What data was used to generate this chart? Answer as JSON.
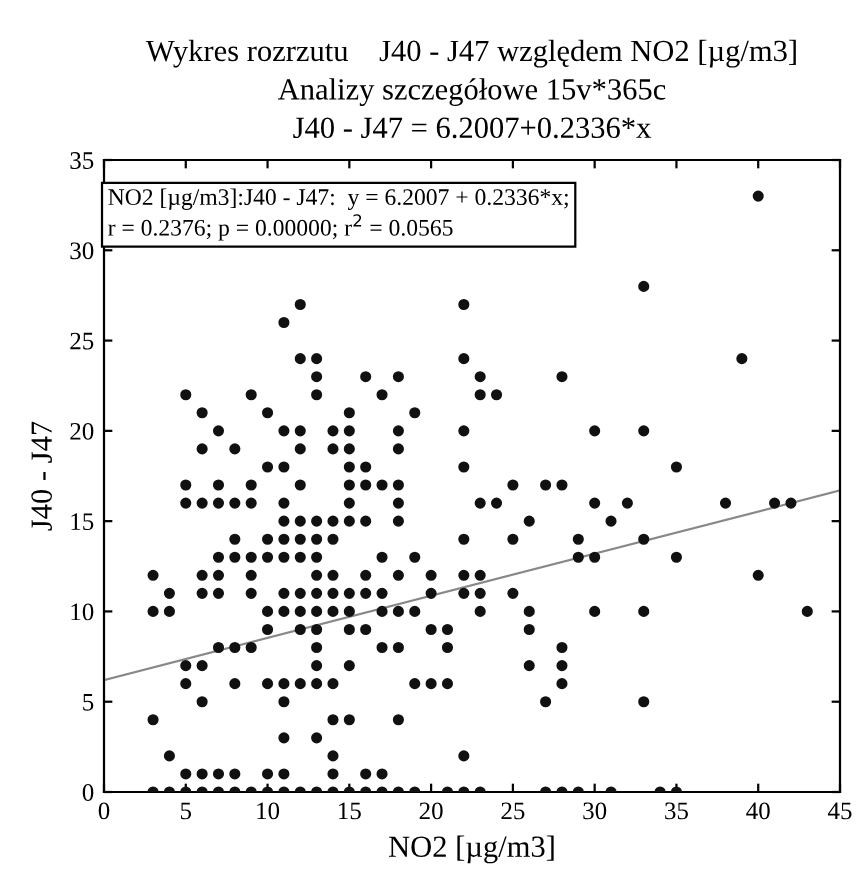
{
  "chart_data": {
    "type": "scatter",
    "title": "Wykres rozrzutu    J40 - J47 względem NO2 [µg/m3]\nAnalizy szczegółowe 15v*365c\nJ40 - J47 = 6.2007+0.2336*x",
    "xlabel": "NO2 [µg/m3]",
    "ylabel": "J40 - J47",
    "annotations": [
      "NO2 [µg/m3]:J40 - J47:  y = 6.2007 + 0.2336*x;\nr = 0.2376; p = 0.00000; r$^{2}$ = 0.0565"
    ],
    "xlim": [
      0,
      45
    ],
    "ylim": [
      0,
      35
    ],
    "xticks": [
      0,
      5,
      10,
      15,
      20,
      25,
      30,
      35,
      40,
      45
    ],
    "yticks": [
      0,
      5,
      10,
      15,
      20,
      25,
      30,
      35
    ],
    "grid": false,
    "legend": false,
    "marker": "circle",
    "series": [
      {
        "color": "#111111",
        "x": [
          3,
          4,
          5,
          6,
          7,
          8,
          9,
          10,
          11,
          12,
          13,
          14,
          15,
          16,
          17,
          18,
          19,
          21,
          22,
          23,
          27,
          28,
          29,
          31,
          34,
          35,
          5,
          6,
          7,
          8,
          10,
          11,
          14,
          16,
          17,
          4,
          14,
          22,
          11,
          13,
          3,
          14,
          15,
          18,
          6,
          11,
          27,
          33,
          5,
          8,
          10,
          11,
          12,
          13,
          14,
          19,
          20,
          21,
          28,
          5,
          6,
          13,
          15,
          26,
          28,
          7,
          8,
          9,
          13,
          17,
          18,
          21,
          28,
          10,
          12,
          13,
          15,
          16,
          20,
          21,
          26,
          3,
          4,
          10,
          11,
          12,
          13,
          14,
          15,
          17,
          18,
          19,
          23,
          26,
          30,
          33,
          43,
          4,
          6,
          7,
          9,
          11,
          12,
          13,
          14,
          15,
          16,
          17,
          20,
          22,
          23,
          25,
          3,
          6,
          7,
          9,
          13,
          14,
          16,
          18,
          20,
          22,
          23,
          40,
          7,
          8,
          9,
          10,
          11,
          12,
          13,
          17,
          19,
          29,
          30,
          35,
          8,
          10,
          11,
          12,
          13,
          14,
          22,
          25,
          29,
          33,
          11,
          12,
          13,
          14,
          15,
          16,
          18,
          26,
          31,
          5,
          6,
          7,
          8,
          9,
          11,
          15,
          18,
          23,
          24,
          30,
          32,
          38,
          41,
          42,
          5,
          7,
          9,
          12,
          15,
          16,
          17,
          18,
          25,
          27,
          28,
          10,
          11,
          15,
          16,
          22,
          35,
          6,
          8,
          12,
          14,
          15,
          18,
          7,
          11,
          12,
          14,
          15,
          18,
          22,
          30,
          33,
          6,
          10,
          15,
          19,
          5,
          9,
          13,
          17,
          23,
          24,
          13,
          16,
          18,
          23,
          28,
          12,
          13,
          22,
          39,
          11,
          12,
          22,
          33,
          40
        ],
        "values": [
          0,
          0,
          0,
          0,
          0,
          0,
          0,
          0,
          0,
          0,
          0,
          0,
          0,
          0,
          0,
          0,
          0,
          0,
          0,
          0,
          0,
          0,
          0,
          0,
          0,
          0,
          1,
          1,
          1,
          1,
          1,
          1,
          1,
          1,
          1,
          2,
          2,
          2,
          3,
          3,
          4,
          4,
          4,
          4,
          5,
          5,
          5,
          5,
          6,
          6,
          6,
          6,
          6,
          6,
          6,
          6,
          6,
          6,
          6,
          7,
          7,
          7,
          7,
          7,
          7,
          8,
          8,
          8,
          8,
          8,
          8,
          8,
          8,
          9,
          9,
          9,
          9,
          9,
          9,
          9,
          9,
          10,
          10,
          10,
          10,
          10,
          10,
          10,
          10,
          10,
          10,
          10,
          10,
          10,
          10,
          10,
          10,
          11,
          11,
          11,
          11,
          11,
          11,
          11,
          11,
          11,
          11,
          11,
          11,
          11,
          11,
          11,
          12,
          12,
          12,
          12,
          12,
          12,
          12,
          12,
          12,
          12,
          12,
          12,
          13,
          13,
          13,
          13,
          13,
          13,
          13,
          13,
          13,
          13,
          13,
          13,
          14,
          14,
          14,
          14,
          14,
          14,
          14,
          14,
          14,
          14,
          15,
          15,
          15,
          15,
          15,
          15,
          15,
          15,
          15,
          16,
          16,
          16,
          16,
          16,
          16,
          16,
          16,
          16,
          16,
          16,
          16,
          16,
          16,
          16,
          17,
          17,
          17,
          17,
          17,
          17,
          17,
          17,
          17,
          17,
          17,
          18,
          18,
          18,
          18,
          18,
          18,
          19,
          19,
          19,
          19,
          19,
          19,
          20,
          20,
          20,
          20,
          20,
          20,
          20,
          20,
          20,
          21,
          21,
          21,
          21,
          22,
          22,
          22,
          22,
          22,
          22,
          23,
          23,
          23,
          23,
          23,
          24,
          24,
          24,
          24,
          26,
          27,
          27,
          28,
          33
        ]
      },
      {
        "type": "line",
        "color": "#888888",
        "marker": "none",
        "line_style": "solid",
        "x": [
          0,
          45
        ],
        "values": [
          6.2,
          16.7
        ]
      }
    ]
  }
}
